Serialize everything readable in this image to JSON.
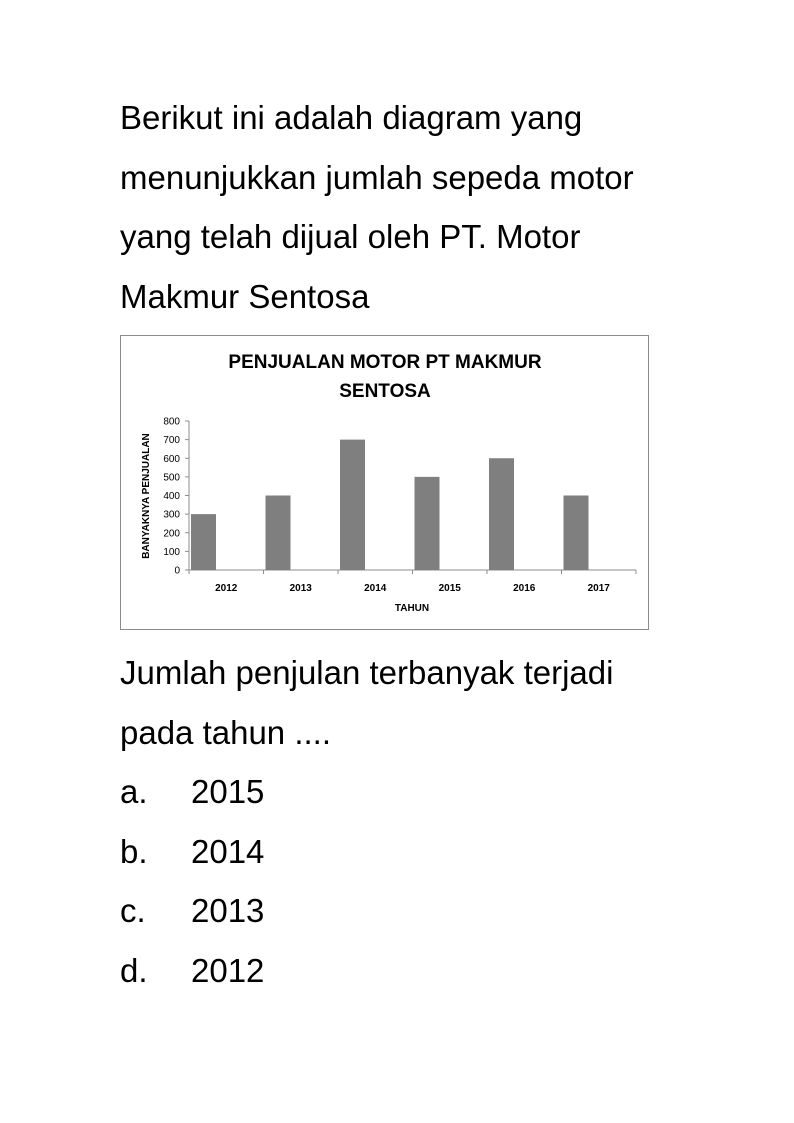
{
  "question": {
    "lines": [
      "Berikut ini adalah diagram yang",
      "menunjukkan jumlah sepeda motor",
      "yang telah dijual oleh PT. Motor",
      "Makmur Sentosa"
    ]
  },
  "chart_data": {
    "type": "bar",
    "title_lines": [
      "PENJUALAN MOTOR PT MAKMUR",
      "SENTOSA"
    ],
    "xlabel": "TAHUN",
    "ylabel": "BANYAKNYA PENJUALAN",
    "categories": [
      "2012",
      "2013",
      "2014",
      "2015",
      "2016",
      "2017"
    ],
    "values": [
      300,
      400,
      700,
      500,
      600,
      400
    ],
    "ylim": [
      0,
      800
    ],
    "yticks": [
      "0",
      "100",
      "200",
      "300",
      "400",
      "500",
      "600",
      "700",
      "800"
    ],
    "grid": false,
    "legend": "none",
    "bar_color": "#7f7f7f"
  },
  "prompt": {
    "lines": [
      "Jumlah penjulan terbanyak terjadi",
      "pada tahun ...."
    ]
  },
  "options": [
    {
      "letter": "a.",
      "value": "2015"
    },
    {
      "letter": "b.",
      "value": "2014"
    },
    {
      "letter": "c.",
      "value": "2013"
    },
    {
      "letter": "d.",
      "value": "2012"
    }
  ]
}
